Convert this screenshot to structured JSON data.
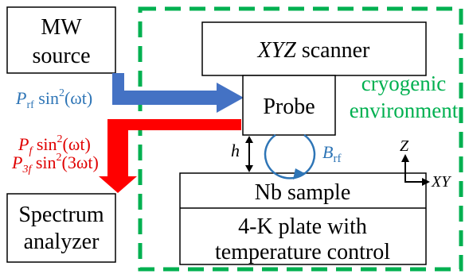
{
  "boxes": {
    "mw_source": {
      "line1": "MW",
      "line2": "source"
    },
    "scanner": {
      "italic": "XYZ",
      "rest": " scanner"
    },
    "probe": {
      "label": "Probe"
    },
    "nb_sample": {
      "label": "Nb sample"
    },
    "plate": {
      "line1": "4-K plate with",
      "line2": "temperature control"
    },
    "spectrum": {
      "line1": "Spectrum",
      "line2": "analyzer"
    }
  },
  "environment": {
    "line1": "cryogenic",
    "line2": "environment"
  },
  "signals": {
    "prf": {
      "P": "P",
      "sub": "rf",
      "fn": " sin",
      "sup": "2",
      "arg": "(ωt)"
    },
    "pf": {
      "P": "P",
      "sub": "f",
      "fn": " sin",
      "sup": "2",
      "arg": "(ωt)"
    },
    "p3f": {
      "P": "P",
      "sub": "3f",
      "fn": " sin",
      "sup": "2",
      "arg": "(3ωt)"
    }
  },
  "labels": {
    "h": "h",
    "brf": {
      "B": "B",
      "sub": "rf"
    },
    "axis_z": "Z",
    "axis_xy": "XY"
  },
  "colors": {
    "blue_arrow": "#4472c4",
    "red_arrow": "#ff0000",
    "green_dash": "#00b050",
    "blue_text": "#2e75b6",
    "red_text": "#e00000"
  }
}
